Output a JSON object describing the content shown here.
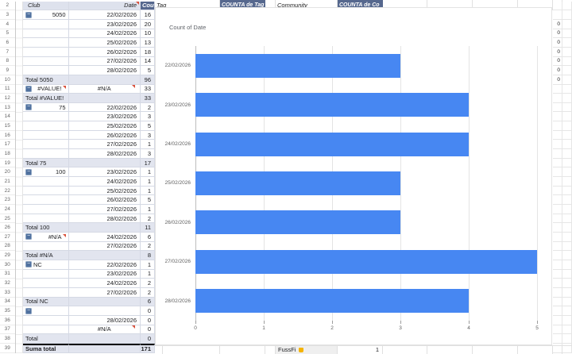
{
  "colors": {
    "bar_blue": "#4787F2",
    "header_dark": "#56688E",
    "header_light": "#DEE2ED",
    "total_bg": "#E2E5EF",
    "marker_red": "#D9513C",
    "pivot_border": "#D5D9E4",
    "button_bg": "#50719F"
  },
  "pivot": {
    "rows": [
      {
        "n": "2",
        "kind": "header",
        "club": "Club",
        "date": "Date",
        "date_marker": true,
        "count": "Cou"
      },
      {
        "n": "3",
        "kind": "group",
        "btn": true,
        "club": "5050",
        "club_align": "right",
        "date": "22/02/2026",
        "count": "16"
      },
      {
        "n": "4",
        "kind": "data",
        "date": "23/02/2026",
        "count": "20"
      },
      {
        "n": "5",
        "kind": "data",
        "date": "24/02/2026",
        "count": "10"
      },
      {
        "n": "6",
        "kind": "data",
        "date": "25/02/2026",
        "count": "13"
      },
      {
        "n": "7",
        "kind": "data",
        "date": "26/02/2026",
        "count": "18"
      },
      {
        "n": "8",
        "kind": "data",
        "date": "27/02/2026",
        "count": "14"
      },
      {
        "n": "9",
        "kind": "data",
        "date": "28/02/2026",
        "count": "5"
      },
      {
        "n": "10",
        "kind": "total",
        "club": "Total 5050",
        "count": "96"
      },
      {
        "n": "11",
        "kind": "group",
        "btn": true,
        "club": "#VALUE!",
        "club_align": "right",
        "club_marker": true,
        "date": "#N/A",
        "date_align": "center",
        "date_marker": true,
        "count": "33"
      },
      {
        "n": "12",
        "kind": "total",
        "club": "Total #VALUE!",
        "count": "33"
      },
      {
        "n": "13",
        "kind": "group",
        "btn": true,
        "club": "75",
        "club_align": "right",
        "date": "22/02/2026",
        "count": "2"
      },
      {
        "n": "14",
        "kind": "data",
        "date": "23/02/2026",
        "count": "3"
      },
      {
        "n": "15",
        "kind": "data",
        "date": "25/02/2026",
        "count": "5"
      },
      {
        "n": "16",
        "kind": "data",
        "date": "26/02/2026",
        "count": "3"
      },
      {
        "n": "17",
        "kind": "data",
        "date": "27/02/2026",
        "count": "1"
      },
      {
        "n": "18",
        "kind": "data",
        "date": "28/02/2026",
        "count": "3"
      },
      {
        "n": "19",
        "kind": "total",
        "club": "Total 75",
        "count": "17"
      },
      {
        "n": "20",
        "kind": "group",
        "btn": true,
        "club": "100",
        "club_align": "right",
        "date": "23/02/2026",
        "count": "1"
      },
      {
        "n": "21",
        "kind": "data",
        "date": "24/02/2026",
        "count": "1"
      },
      {
        "n": "22",
        "kind": "data",
        "date": "25/02/2026",
        "count": "1"
      },
      {
        "n": "23",
        "kind": "data",
        "date": "26/02/2026",
        "count": "5"
      },
      {
        "n": "24",
        "kind": "data",
        "date": "27/02/2026",
        "count": "1"
      },
      {
        "n": "25",
        "kind": "data",
        "date": "28/02/2026",
        "count": "2"
      },
      {
        "n": "26",
        "kind": "total",
        "club": "Total 100",
        "count": "11"
      },
      {
        "n": "27",
        "kind": "group",
        "btn": true,
        "club": "#N/A",
        "club_align": "right",
        "club_marker": true,
        "date": "24/02/2026",
        "count": "6"
      },
      {
        "n": "28",
        "kind": "data",
        "date": "27/02/2026",
        "count": "2"
      },
      {
        "n": "29",
        "kind": "total",
        "club": "Total #N/A",
        "count": "8"
      },
      {
        "n": "30",
        "kind": "group",
        "btn": true,
        "club": "NC",
        "club_align": "left",
        "date": "22/02/2026",
        "count": "1"
      },
      {
        "n": "31",
        "kind": "data",
        "date": "23/02/2026",
        "count": "1"
      },
      {
        "n": "32",
        "kind": "data",
        "date": "24/02/2026",
        "count": "2"
      },
      {
        "n": "33",
        "kind": "data",
        "date": "27/02/2026",
        "count": "2"
      },
      {
        "n": "34",
        "kind": "total",
        "club": "Total NC",
        "count": "6"
      },
      {
        "n": "35",
        "kind": "group",
        "btn": true,
        "club": "",
        "date": "",
        "count": "0"
      },
      {
        "n": "36",
        "kind": "data",
        "date": "28/02/2026",
        "count": "0"
      },
      {
        "n": "37",
        "kind": "data",
        "date": "#N/A",
        "date_align": "center",
        "date_marker": true,
        "count": "0"
      },
      {
        "n": "38",
        "kind": "total",
        "club": "Total",
        "count": "0"
      },
      {
        "n": "39",
        "kind": "grand",
        "club": "Suma total",
        "count": "171"
      }
    ]
  },
  "top_header": {
    "tag": "Tag",
    "counta_tag": "COUNTA de Tag",
    "community": "Community",
    "counta_community": "COUNTA de Co"
  },
  "right_zeros": [
    "0",
    "0",
    "0",
    "0",
    "0",
    "0",
    "0"
  ],
  "right_zeros_start_row": 4,
  "bottom_row": {
    "name": "FussFi",
    "count": "1"
  },
  "chart_data": {
    "type": "bar",
    "orientation": "horizontal",
    "title": "Count of Date",
    "categories": [
      "22/02/2026",
      "23/02/2026",
      "24/02/2026",
      "25/02/2026",
      "26/02/2026",
      "27/02/2026",
      "28/02/2026"
    ],
    "values": [
      3,
      4,
      4,
      3,
      3,
      5,
      4
    ],
    "xlabel": "",
    "ylabel": "",
    "xlim": [
      0,
      5
    ],
    "xticks": [
      0,
      1,
      2,
      3,
      4,
      5
    ],
    "grid": true,
    "legend": "none"
  }
}
